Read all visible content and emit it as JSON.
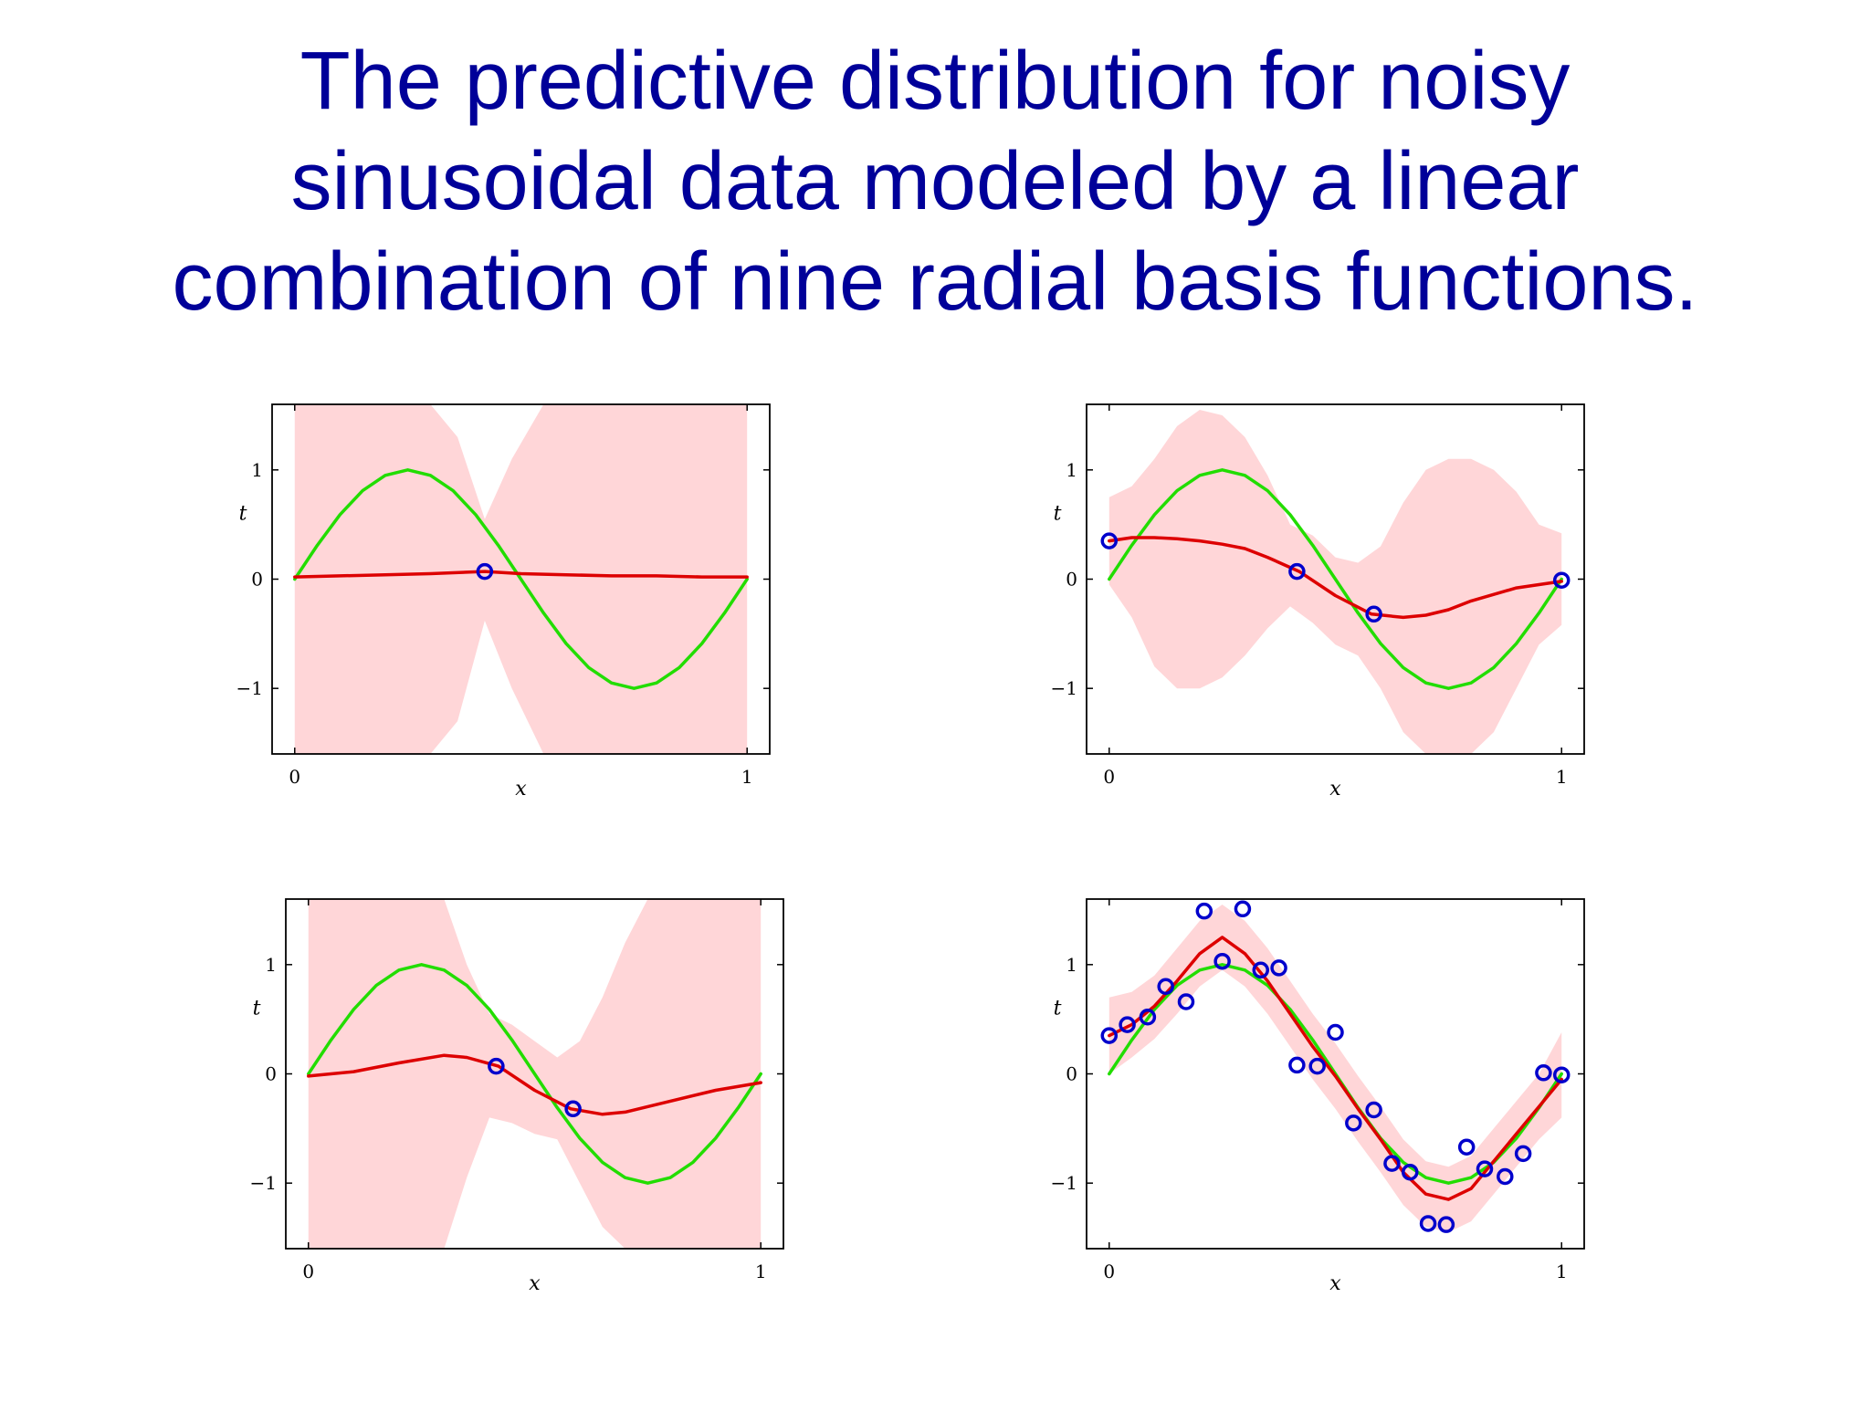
{
  "title": {
    "lines": [
      "The predictive distribution for noisy",
      "sinusoidal data modeled by a linear",
      "combination of nine radial basis functions."
    ]
  },
  "colors": {
    "title": "#000099",
    "true_curve": "#22dd00",
    "mean_curve": "#dd0000",
    "band": "#ffd6d8",
    "points": "#0000cc"
  },
  "chart_data": [
    {
      "type": "line",
      "xlabel": "x",
      "ylabel": "t",
      "xlim": [
        -0.05,
        1.05
      ],
      "ylim": [
        -1.6,
        1.6
      ],
      "xticks": [
        0,
        1
      ],
      "yticks": [
        -1,
        0,
        1
      ],
      "xtick_labels": [
        "0",
        "1"
      ],
      "ytick_labels": [
        "−1",
        "0",
        "1"
      ],
      "series": [
        {
          "role": "true_curve",
          "x": [
            0,
            0.05,
            0.1,
            0.15,
            0.2,
            0.25,
            0.3,
            0.35,
            0.4,
            0.45,
            0.5,
            0.55,
            0.6,
            0.65,
            0.7,
            0.75,
            0.8,
            0.85,
            0.9,
            0.95,
            1
          ],
          "y": [
            0,
            0.31,
            0.59,
            0.81,
            0.95,
            1,
            0.95,
            0.81,
            0.59,
            0.31,
            0,
            -0.31,
            -0.59,
            -0.81,
            -0.95,
            -1,
            -0.95,
            -0.81,
            -0.59,
            -0.31,
            0
          ]
        },
        {
          "role": "mean",
          "x": [
            0,
            0.1,
            0.2,
            0.3,
            0.42,
            0.5,
            0.6,
            0.7,
            0.8,
            0.9,
            1
          ],
          "y": [
            0.02,
            0.03,
            0.04,
            0.05,
            0.07,
            0.05,
            0.04,
            0.03,
            0.03,
            0.02,
            0.02
          ]
        },
        {
          "role": "band",
          "x": [
            0,
            0.1,
            0.2,
            0.3,
            0.36,
            0.42,
            0.48,
            0.55,
            0.6,
            0.7,
            0.8,
            0.9,
            1
          ],
          "upper": [
            1.6,
            1.6,
            1.6,
            1.6,
            1.3,
            0.55,
            1.1,
            1.6,
            1.6,
            1.6,
            1.6,
            1.6,
            1.6
          ],
          "lower": [
            -1.6,
            -1.6,
            -1.6,
            -1.6,
            -1.3,
            -0.38,
            -1.0,
            -1.6,
            -1.6,
            -1.6,
            -1.6,
            -1.6,
            -1.6
          ]
        }
      ],
      "points": {
        "x": [
          0.42
        ],
        "y": [
          0.07
        ]
      }
    },
    {
      "type": "line",
      "xlabel": "x",
      "ylabel": "t",
      "xlim": [
        -0.05,
        1.05
      ],
      "ylim": [
        -1.6,
        1.6
      ],
      "xticks": [
        0,
        1
      ],
      "yticks": [
        -1,
        0,
        1
      ],
      "xtick_labels": [
        "0",
        "1"
      ],
      "ytick_labels": [
        "−1",
        "0",
        "1"
      ],
      "series": [
        {
          "role": "true_curve",
          "x": [
            0,
            0.05,
            0.1,
            0.15,
            0.2,
            0.25,
            0.3,
            0.35,
            0.4,
            0.45,
            0.5,
            0.55,
            0.6,
            0.65,
            0.7,
            0.75,
            0.8,
            0.85,
            0.9,
            0.95,
            1
          ],
          "y": [
            0,
            0.31,
            0.59,
            0.81,
            0.95,
            1,
            0.95,
            0.81,
            0.59,
            0.31,
            0,
            -0.31,
            -0.59,
            -0.81,
            -0.95,
            -1,
            -0.95,
            -0.81,
            -0.59,
            -0.31,
            0
          ]
        },
        {
          "role": "mean",
          "x": [
            0,
            0.05,
            0.1,
            0.15,
            0.2,
            0.25,
            0.3,
            0.35,
            0.42,
            0.5,
            0.58,
            0.65,
            0.7,
            0.75,
            0.8,
            0.9,
            1
          ],
          "y": [
            0.35,
            0.38,
            0.38,
            0.37,
            0.35,
            0.32,
            0.28,
            0.2,
            0.07,
            -0.15,
            -0.32,
            -0.35,
            -0.33,
            -0.28,
            -0.2,
            -0.08,
            -0.02
          ]
        },
        {
          "role": "band",
          "x": [
            0,
            0.05,
            0.1,
            0.15,
            0.2,
            0.25,
            0.3,
            0.35,
            0.4,
            0.45,
            0.5,
            0.55,
            0.6,
            0.65,
            0.7,
            0.75,
            0.8,
            0.85,
            0.9,
            0.95,
            1
          ],
          "upper": [
            0.75,
            0.85,
            1.1,
            1.4,
            1.55,
            1.5,
            1.3,
            0.95,
            0.5,
            0.4,
            0.2,
            0.15,
            0.3,
            0.7,
            1.0,
            1.1,
            1.1,
            1.0,
            0.8,
            0.5,
            0.42
          ],
          "lower": [
            -0.05,
            -0.35,
            -0.8,
            -1.0,
            -1.0,
            -0.9,
            -0.7,
            -0.45,
            -0.25,
            -0.4,
            -0.6,
            -0.7,
            -1.0,
            -1.4,
            -1.6,
            -1.6,
            -1.6,
            -1.4,
            -1.0,
            -0.6,
            -0.42
          ]
        }
      ],
      "points": {
        "x": [
          0,
          0.415,
          0.585,
          1
        ],
        "y": [
          0.35,
          0.07,
          -0.32,
          -0.01
        ]
      }
    },
    {
      "type": "line",
      "xlabel": "x",
      "ylabel": "t",
      "xlim": [
        -0.05,
        1.05
      ],
      "ylim": [
        -1.6,
        1.6
      ],
      "xticks": [
        0,
        1
      ],
      "yticks": [
        -1,
        0,
        1
      ],
      "xtick_labels": [
        "0",
        "1"
      ],
      "ytick_labels": [
        "−1",
        "0",
        "1"
      ],
      "series": [
        {
          "role": "true_curve",
          "x": [
            0,
            0.05,
            0.1,
            0.15,
            0.2,
            0.25,
            0.3,
            0.35,
            0.4,
            0.45,
            0.5,
            0.55,
            0.6,
            0.65,
            0.7,
            0.75,
            0.8,
            0.85,
            0.9,
            0.95,
            1
          ],
          "y": [
            0,
            0.31,
            0.59,
            0.81,
            0.95,
            1,
            0.95,
            0.81,
            0.59,
            0.31,
            0,
            -0.31,
            -0.59,
            -0.81,
            -0.95,
            -1,
            -0.95,
            -0.81,
            -0.59,
            -0.31,
            0
          ]
        },
        {
          "role": "mean",
          "x": [
            0,
            0.1,
            0.2,
            0.3,
            0.35,
            0.42,
            0.5,
            0.58,
            0.65,
            0.7,
            0.8,
            0.9,
            1
          ],
          "y": [
            -0.02,
            0.02,
            0.1,
            0.17,
            0.15,
            0.07,
            -0.15,
            -0.32,
            -0.37,
            -0.35,
            -0.25,
            -0.15,
            -0.08
          ]
        },
        {
          "role": "band",
          "x": [
            0,
            0.1,
            0.2,
            0.25,
            0.3,
            0.35,
            0.4,
            0.45,
            0.5,
            0.55,
            0.6,
            0.65,
            0.7,
            0.75,
            0.8,
            0.9,
            1
          ],
          "upper": [
            1.6,
            1.6,
            1.6,
            1.6,
            1.6,
            1.0,
            0.55,
            0.45,
            0.3,
            0.15,
            0.3,
            0.7,
            1.2,
            1.6,
            1.6,
            1.6,
            1.6
          ],
          "lower": [
            -1.6,
            -1.6,
            -1.6,
            -1.6,
            -1.6,
            -0.95,
            -0.4,
            -0.45,
            -0.55,
            -0.6,
            -1.0,
            -1.4,
            -1.6,
            -1.6,
            -1.6,
            -1.6,
            -1.6
          ]
        }
      ],
      "points": {
        "x": [
          0.415,
          0.585
        ],
        "y": [
          0.07,
          -0.32
        ]
      }
    },
    {
      "type": "line",
      "xlabel": "x",
      "ylabel": "t",
      "xlim": [
        -0.05,
        1.05
      ],
      "ylim": [
        -1.6,
        1.6
      ],
      "xticks": [
        0,
        1
      ],
      "yticks": [
        -1,
        0,
        1
      ],
      "xtick_labels": [
        "0",
        "1"
      ],
      "ytick_labels": [
        "−1",
        "0",
        "1"
      ],
      "series": [
        {
          "role": "true_curve",
          "x": [
            0,
            0.05,
            0.1,
            0.15,
            0.2,
            0.25,
            0.3,
            0.35,
            0.4,
            0.45,
            0.5,
            0.55,
            0.6,
            0.65,
            0.7,
            0.75,
            0.8,
            0.85,
            0.9,
            0.95,
            1
          ],
          "y": [
            0,
            0.31,
            0.59,
            0.81,
            0.95,
            1,
            0.95,
            0.81,
            0.59,
            0.31,
            0,
            -0.31,
            -0.59,
            -0.81,
            -0.95,
            -1,
            -0.95,
            -0.81,
            -0.59,
            -0.31,
            0
          ]
        },
        {
          "role": "mean",
          "x": [
            0,
            0.05,
            0.1,
            0.15,
            0.2,
            0.25,
            0.3,
            0.35,
            0.4,
            0.45,
            0.5,
            0.55,
            0.6,
            0.65,
            0.7,
            0.75,
            0.8,
            0.85,
            0.9,
            0.95,
            1
          ],
          "y": [
            0.35,
            0.45,
            0.62,
            0.85,
            1.1,
            1.25,
            1.1,
            0.85,
            0.55,
            0.25,
            -0.02,
            -0.32,
            -0.6,
            -0.9,
            -1.1,
            -1.15,
            -1.05,
            -0.8,
            -0.55,
            -0.3,
            -0.05
          ]
        },
        {
          "role": "band",
          "x": [
            0,
            0.05,
            0.1,
            0.15,
            0.2,
            0.25,
            0.3,
            0.35,
            0.4,
            0.45,
            0.5,
            0.55,
            0.6,
            0.65,
            0.7,
            0.75,
            0.8,
            0.85,
            0.9,
            0.95,
            1
          ],
          "upper": [
            0.7,
            0.75,
            0.9,
            1.15,
            1.4,
            1.55,
            1.4,
            1.15,
            0.85,
            0.55,
            0.28,
            -0.02,
            -0.3,
            -0.6,
            -0.8,
            -0.85,
            -0.75,
            -0.5,
            -0.25,
            0.0,
            0.38
          ],
          "lower": [
            0.0,
            0.15,
            0.32,
            0.55,
            0.8,
            0.95,
            0.8,
            0.55,
            0.25,
            -0.05,
            -0.32,
            -0.62,
            -0.9,
            -1.2,
            -1.4,
            -1.45,
            -1.35,
            -1.1,
            -0.85,
            -0.6,
            -0.4
          ]
        }
      ],
      "points": {
        "x": [
          0,
          0.04,
          0.085,
          0.125,
          0.17,
          0.21,
          0.25,
          0.295,
          0.335,
          0.375,
          0.415,
          0.46,
          0.5,
          0.54,
          0.585,
          0.625,
          0.665,
          0.705,
          0.745,
          0.79,
          0.83,
          0.875,
          0.915,
          0.96,
          1
        ],
        "y": [
          0.35,
          0.45,
          0.52,
          0.8,
          0.66,
          1.49,
          1.03,
          1.51,
          0.95,
          0.97,
          0.08,
          0.07,
          0.38,
          -0.45,
          -0.33,
          -0.82,
          -0.9,
          -1.37,
          -1.38,
          -0.67,
          -0.87,
          -0.94,
          -0.73,
          0.01,
          -0.01
        ]
      }
    }
  ]
}
